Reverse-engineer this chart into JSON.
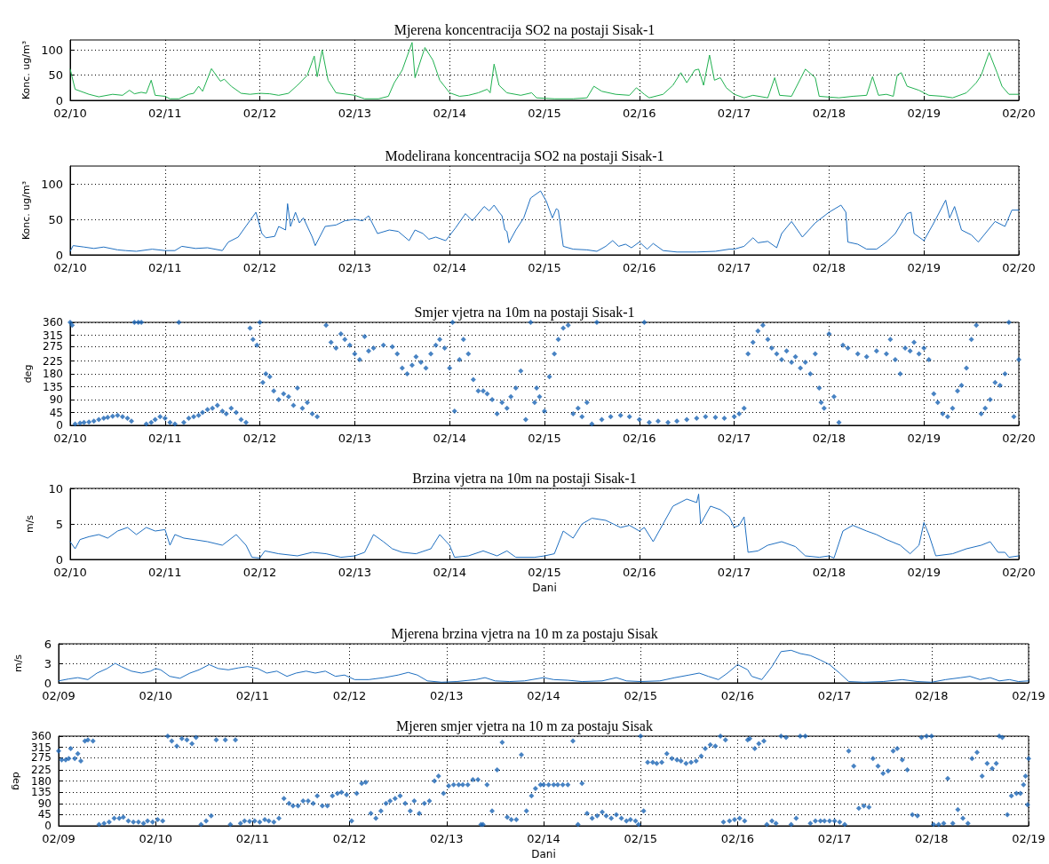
{
  "chart_data": [
    {
      "type": "line",
      "title": "Mjerena koncentracija SO2 na postaji Sisak-1",
      "ylabel": "Konc. ug/m³",
      "color": "#1fb04f",
      "grid": true,
      "xlim": [
        "--02-10",
        "--02-20"
      ],
      "xticks": [
        {
          "value": "--02-10",
          "label": "02/10"
        },
        {
          "value": "--02-11",
          "label": "02/11"
        },
        {
          "value": "--02-12",
          "label": "02/12"
        },
        {
          "value": "--02-13",
          "label": "02/13"
        },
        {
          "value": "--02-14",
          "label": "02/14"
        },
        {
          "value": "--02-15",
          "label": "02/15"
        },
        {
          "value": "--02-16",
          "label": "02/16"
        },
        {
          "value": "--02-17",
          "label": "02/17"
        },
        {
          "value": "--02-18",
          "label": "02/18"
        },
        {
          "value": "--02-19",
          "label": "02/19"
        },
        {
          "value": "--02-20",
          "label": "02/20"
        }
      ],
      "ylim": [
        0,
        120
      ],
      "yticks": [
        0,
        50,
        100
      ],
      "x": [
        "--02-10T00:00",
        "--02-10T01:15",
        "--02-10T04:45",
        "--02-10T07:15",
        "--02-10T10:45",
        "--02-10T13:15",
        "--02-10T15:00",
        "--02-10T16:15",
        "--02-10T18:00",
        "--02-10T19:15",
        "--02-10T20:30",
        "--02-10T21:30",
        "--02-11T00:00",
        "--02-11T01:15",
        "--02-11T03:30",
        "--02-11T06:00",
        "--02-11T07:15",
        "--02-11T08:30",
        "--02-11T09:30",
        "--02-11T11:45",
        "--02-11T14:00",
        "--02-11T15:00",
        "--02-11T16:45",
        "--02-11T19:15",
        "--02-11T21:30",
        "--02-12T00:00",
        "--02-12T02:30",
        "--02-12T04:45",
        "--02-12T07:15",
        "--02-12T09:30",
        "--02-12T12:00",
        "--02-12T13:45",
        "--02-12T14:30",
        "--02-12T15:45",
        "--02-12T17:15",
        "--02-12T19:15",
        "--02-13T00:00",
        "--02-13T02:30",
        "--02-13T06:00",
        "--02-13T08:30",
        "--02-13T10:00",
        "--02-13T12:00",
        "--02-13T14:30",
        "--02-13T15:15",
        "--02-13T17:45",
        "--02-13T19:45",
        "--02-13T21:30",
        "--02-14T00:00",
        "--02-14T02:30",
        "--02-14T04:45",
        "--02-14T07:15",
        "--02-14T09:30",
        "--02-14T10:15",
        "--02-14T11:15",
        "--02-14T12:30",
        "--02-14T14:30",
        "--02-14T18:00",
        "--02-14T20:45",
        "--02-14T22:00",
        "--02-15T02:30",
        "--02-15T07:15",
        "--02-15T10:45",
        "--02-15T12:30",
        "--02-15T14:30",
        "--02-15T18:00",
        "--02-15T21:30",
        "--02-15T23:15",
        "--02-16T01:15",
        "--02-16T02:30",
        "--02-16T06:00",
        "--02-16T08:30",
        "--02-16T10:30",
        "--02-16T12:00",
        "--02-16T14:00",
        "--02-16T15:00",
        "--02-16T16:15",
        "--02-16T17:45",
        "--02-16T19:00",
        "--02-16T20:30",
        "--02-16T22:00",
        "--02-17T00:00",
        "--02-17T02:30",
        "--02-17T04:45",
        "--02-17T08:30",
        "--02-17T10:15",
        "--02-17T11:30",
        "--02-17T14:30",
        "--02-17T18:00",
        "--02-17T20:30",
        "--02-17T21:30",
        "--02-18T02:30",
        "--02-18T06:00",
        "--02-18T09:30",
        "--02-18T11:00",
        "--02-18T12:30",
        "--02-18T14:30",
        "--02-18T16:15",
        "--02-18T17:15",
        "--02-18T18:15",
        "--02-18T19:45",
        "--02-18T22:45",
        "--02-19T01:15",
        "--02-19T04:45",
        "--02-19T07:15",
        "--02-19T10:45",
        "--02-19T13:15",
        "--02-19T14:30",
        "--02-19T16:30",
        "--02-19T18:30",
        "--02-19T19:45",
        "--02-19T21:30",
        "--02-20T00:00"
      ],
      "values": [
        62,
        22,
        12,
        7,
        12,
        10,
        20,
        13,
        16,
        14,
        40,
        10,
        8,
        3,
        3,
        12,
        14,
        28,
        18,
        63,
        38,
        42,
        28,
        14,
        12,
        14,
        13,
        10,
        14,
        30,
        50,
        88,
        47,
        100,
        40,
        15,
        10,
        3,
        3,
        8,
        35,
        60,
        115,
        45,
        105,
        80,
        40,
        15,
        8,
        10,
        15,
        22,
        15,
        72,
        30,
        15,
        10,
        15,
        5,
        3,
        3,
        5,
        28,
        18,
        12,
        10,
        25,
        12,
        5,
        12,
        30,
        55,
        35,
        60,
        62,
        30,
        90,
        40,
        45,
        25,
        12,
        5,
        10,
        5,
        45,
        10,
        8,
        62,
        45,
        8,
        5,
        8,
        10,
        47,
        10,
        12,
        8,
        50,
        55,
        28,
        20,
        10,
        8,
        5,
        15,
        35,
        50,
        95,
        55,
        28,
        12,
        12
      ]
    },
    {
      "type": "line",
      "title": "Modelirana koncentracija SO2 na postaji Sisak-1",
      "ylabel": "Konc. ug/m³",
      "color": "#1f6fc0",
      "grid": true,
      "xlim": [
        "--02-10",
        "--02-20"
      ],
      "xticks": [
        {
          "value": "--02-10",
          "label": "02/10"
        },
        {
          "value": "--02-11",
          "label": "02/11"
        },
        {
          "value": "--02-12",
          "label": "02/12"
        },
        {
          "value": "--02-13",
          "label": "02/13"
        },
        {
          "value": "--02-14",
          "label": "02/14"
        },
        {
          "value": "--02-15",
          "label": "02/15"
        },
        {
          "value": "--02-16",
          "label": "02/16"
        },
        {
          "value": "--02-17",
          "label": "02/17"
        },
        {
          "value": "--02-18",
          "label": "02/18"
        },
        {
          "value": "--02-19",
          "label": "02/19"
        },
        {
          "value": "--02-20",
          "label": "02/20"
        }
      ],
      "ylim": [
        0,
        125
      ],
      "yticks": [
        0,
        50,
        100
      ],
      "x": [
        "--02-10T00:00",
        "--02-10T00:45",
        "--02-10T03:30",
        "--02-10T06:00",
        "--02-10T08:30",
        "--02-10T12:00",
        "--02-10T14:00",
        "--02-10T16:45",
        "--02-10T20:45",
        "--02-11T00:00",
        "--02-11T02:30",
        "--02-11T04:15",
        "--02-11T07:45",
        "--02-11T10:45",
        "--02-11T14:30",
        "--02-11T16:00",
        "--02-11T18:30",
        "--02-11T23:00",
        "--02-12T00:30",
        "--02-12T01:30",
        "--02-12T03:45",
        "--02-12T04:45",
        "--02-12T06:30",
        "--02-12T07:00",
        "--02-12T07:45",
        "--02-12T09:00",
        "--02-12T10:00",
        "--02-12T11:00",
        "--02-12T13:15",
        "--02-12T14:00",
        "--02-12T16:30",
        "--02-12T19:15",
        "--02-12T21:30",
        "--02-13T00:00",
        "--02-13T02:00",
        "--02-13T03:30",
        "--02-13T05:45",
        "--02-13T08:45",
        "--02-13T11:00",
        "--02-13T13:45",
        "--02-13T15:15",
        "--02-13T17:15",
        "--02-13T18:45",
        "--02-13T20:30",
        "--02-13T23:00",
        "--02-14T01:30",
        "--02-14T04:00",
        "--02-14T05:45",
        "--02-14T08:45",
        "--02-14T10:00",
        "--02-14T11:15",
        "--02-14T12:30",
        "--02-14T13:15",
        "--02-14T14:00",
        "--02-14T14:30",
        "--02-14T15:00",
        "--02-14T16:45",
        "--02-14T18:45",
        "--02-14T20:30",
        "--02-14T23:00",
        "--02-15T00:30",
        "--02-15T02:00",
        "--02-15T03:00",
        "--02-15T03:30",
        "--02-15T04:45",
        "--02-15T07:15",
        "--02-15T10:45",
        "--02-15T13:15",
        "--02-15T15:30",
        "--02-15T17:15",
        "--02-15T18:45",
        "--02-15T20:30",
        "--02-15T22:00",
        "--02-16T00:00",
        "--02-16T02:00",
        "--02-16T03:30",
        "--02-16T06:00",
        "--02-16T09:30",
        "--02-16T14:30",
        "--02-16T19:15",
        "--02-16T22:45",
        "--02-17T00:00",
        "--02-17T02:30",
        "--02-17T04:45",
        "--02-17T06:00",
        "--02-17T08:30",
        "--02-17T10:45",
        "--02-17T12:00",
        "--02-17T14:30",
        "--02-17T17:15",
        "--02-17T20:30",
        "--02-18T00:00",
        "--02-18T03:00",
        "--02-18T04:15",
        "--02-18T04:45",
        "--02-18T07:15",
        "--02-18T09:30",
        "--02-18T12:00",
        "--02-18T14:30",
        "--02-18T16:45",
        "--02-18T19:45",
        "--02-18T20:45",
        "--02-18T21:30",
        "--02-19T00:00",
        "--02-19T02:30",
        "--02-19T05:30",
        "--02-19T06:30",
        "--02-19T07:45",
        "--02-19T09:30",
        "--02-19T12:00",
        "--02-19T13:45",
        "--02-19T15:30",
        "--02-19T18:00",
        "--02-19T20:30",
        "--02-19T22:15",
        "--02-20T00:00"
      ],
      "values": [
        5,
        13,
        11,
        9,
        11,
        7,
        6,
        5,
        8,
        6,
        6,
        12,
        9,
        10,
        6,
        18,
        25,
        60,
        30,
        24,
        26,
        40,
        35,
        72,
        40,
        60,
        45,
        52,
        25,
        13,
        40,
        42,
        48,
        50,
        48,
        55,
        30,
        35,
        33,
        20,
        35,
        30,
        22,
        25,
        20,
        38,
        58,
        48,
        68,
        62,
        70,
        60,
        55,
        35,
        33,
        17,
        35,
        52,
        80,
        90,
        75,
        52,
        65,
        63,
        12,
        8,
        7,
        5,
        12,
        20,
        12,
        15,
        10,
        18,
        8,
        16,
        6,
        4,
        4,
        5,
        8,
        8,
        12,
        24,
        17,
        19,
        10,
        30,
        47,
        25,
        45,
        60,
        70,
        60,
        18,
        15,
        8,
        8,
        18,
        30,
        58,
        60,
        30,
        20,
        45,
        77,
        52,
        68,
        35,
        28,
        18,
        30,
        47,
        40,
        63,
        63
      ]
    },
    {
      "type": "scatter",
      "title": "Smjer vjetra na 10m na postaji Sisak-1",
      "ylabel": "deg",
      "color": "#1a64b4",
      "marker": "diamond",
      "grid": true,
      "xlim": [
        "--02-10",
        "--02-20"
      ],
      "xticks": [
        {
          "value": "--02-10",
          "label": "02/10"
        },
        {
          "value": "--02-11",
          "label": "02/11"
        },
        {
          "value": "--02-12",
          "label": "02/12"
        },
        {
          "value": "--02-13",
          "label": "02/13"
        },
        {
          "value": "--02-14",
          "label": "02/14"
        },
        {
          "value": "--02-15",
          "label": "02/15"
        },
        {
          "value": "--02-16",
          "label": "02/16"
        },
        {
          "value": "--02-17",
          "label": "02/17"
        },
        {
          "value": "--02-18",
          "label": "02/18"
        },
        {
          "value": "--02-19",
          "label": "02/19"
        },
        {
          "value": "--02-20",
          "label": "02/20"
        }
      ],
      "ylim": [
        0,
        360
      ],
      "yticks": [
        0,
        45,
        90,
        135,
        180,
        225,
        275,
        315,
        360
      ],
      "x": [
        "--02-10T00:00",
        "--02-10T00:30",
        "--02-10T01:15",
        "--02-10T02:30",
        "--02-10T03:30",
        "--02-10T04:45",
        "--02-10T06:00",
        "--02-10T07:15",
        "--02-10T08:30",
        "--02-10T09:30",
        "--02-10T10:45",
        "--02-10T12:00",
        "--02-10T13:15",
        "--02-10T14:30",
        "--02-10T15:30",
        "--02-10T16:15",
        "--02-10T17:15",
        "--02-10T18:00",
        "--02-10T19:15",
        "--02-10T20:30",
        "--02-10T21:30",
        "--02-10T22:45",
        "--02-11T00:00",
        "--02-11T01:15",
        "--02-11T02:30",
        "--02-11T03:30",
        "--02-11T04:45",
        "--02-11T06:00",
        "--02-11T07:15",
        "--02-11T08:30",
        "--02-11T09:30",
        "--02-11T10:45",
        "--02-11T12:00",
        "--02-11T13:15",
        "--02-11T14:30",
        "--02-11T15:30",
        "--02-11T16:45",
        "--02-11T18:00",
        "--02-11T19:15",
        "--02-11T20:30",
        "--02-11T21:30",
        "--02-11T22:15",
        "--02-11T23:15",
        "--02-12T00:00",
        "--02-12T00:45",
        "--02-12T01:30",
        "--02-12T02:30",
        "--02-12T03:30",
        "--02-12T04:45",
        "--02-12T06:00",
        "--02-12T07:15",
        "--02-12T08:30",
        "--02-12T09:30",
        "--02-12T10:45",
        "--02-12T12:00",
        "--02-12T13:15",
        "--02-12T14:30",
        "--02-12T16:45",
        "--02-12T18:00",
        "--02-12T19:15",
        "--02-12T20:30",
        "--02-12T21:30",
        "--02-12T22:45",
        "--02-13T00:00",
        "--02-13T01:15",
        "--02-13T02:30",
        "--02-13T03:30",
        "--02-13T04:45",
        "--02-13T07:15",
        "--02-13T09:30",
        "--02-13T10:45",
        "--02-13T12:00",
        "--02-13T13:15",
        "--02-13T14:30",
        "--02-13T15:30",
        "--02-13T16:45",
        "--02-13T18:00",
        "--02-13T19:15",
        "--02-13T20:30",
        "--02-13T21:30",
        "--02-13T22:45",
        "--02-14T00:00",
        "--02-14T00:45",
        "--02-14T01:15",
        "--02-14T02:30",
        "--02-14T03:30",
        "--02-14T04:45",
        "--02-14T06:00",
        "--02-14T07:15",
        "--02-14T08:30",
        "--02-14T09:30",
        "--02-14T10:45",
        "--02-14T12:00",
        "--02-14T13:15",
        "--02-14T14:30",
        "--02-14T15:30",
        "--02-14T16:45",
        "--02-14T18:00",
        "--02-14T19:15",
        "--02-14T20:30",
        "--02-14T21:30",
        "--02-14T22:00",
        "--02-14T22:45",
        "--02-15T00:00",
        "--02-15T01:15",
        "--02-15T02:30",
        "--02-15T03:30",
        "--02-15T04:45",
        "--02-15T06:00",
        "--02-15T07:15",
        "--02-15T08:30",
        "--02-15T09:30",
        "--02-15T10:45",
        "--02-15T12:00",
        "--02-15T13:15",
        "--02-15T14:30",
        "--02-15T16:45",
        "--02-15T19:15",
        "--02-15T21:30",
        "--02-16T00:00",
        "--02-16T01:15",
        "--02-16T02:30",
        "--02-16T04:45",
        "--02-16T07:15",
        "--02-16T09:30",
        "--02-16T12:00",
        "--02-16T14:30",
        "--02-16T16:45",
        "--02-16T19:15",
        "--02-16T21:30",
        "--02-17T00:00",
        "--02-17T01:15",
        "--02-17T02:30",
        "--02-17T03:30",
        "--02-17T04:45",
        "--02-17T06:00",
        "--02-17T07:15",
        "--02-17T08:30",
        "--02-17T09:30",
        "--02-17T10:45",
        "--02-17T12:00",
        "--02-17T13:15",
        "--02-17T14:30",
        "--02-17T15:30",
        "--02-17T16:45",
        "--02-17T18:00",
        "--02-17T19:15",
        "--02-17T20:30",
        "--02-17T21:30",
        "--02-17T22:00",
        "--02-17T22:45",
        "--02-18T00:00",
        "--02-18T01:15",
        "--02-18T02:30",
        "--02-18T03:30",
        "--02-18T04:45",
        "--02-18T07:15",
        "--02-18T09:30",
        "--02-18T12:00",
        "--02-18T14:30",
        "--02-18T15:30",
        "--02-18T16:45",
        "--02-18T18:00",
        "--02-18T19:15",
        "--02-18T20:30",
        "--02-18T21:30",
        "--02-18T22:45",
        "--02-19T00:00",
        "--02-19T01:15",
        "--02-19T02:30",
        "--02-19T03:30",
        "--02-19T04:45",
        "--02-19T06:00",
        "--02-19T07:15",
        "--02-19T08:30",
        "--02-19T09:30",
        "--02-19T10:45",
        "--02-19T12:00",
        "--02-19T13:15",
        "--02-19T14:30",
        "--02-19T15:30",
        "--02-19T16:45",
        "--02-19T18:00",
        "--02-19T19:15",
        "--02-19T20:30",
        "--02-19T21:30",
        "--02-19T22:45",
        "--02-20T00:00"
      ],
      "values": [
        360,
        350,
        5,
        8,
        10,
        12,
        15,
        20,
        25,
        28,
        32,
        35,
        30,
        25,
        15,
        360,
        360,
        360,
        5,
        10,
        20,
        30,
        25,
        10,
        5,
        360,
        10,
        25,
        30,
        35,
        45,
        55,
        60,
        70,
        50,
        40,
        60,
        45,
        20,
        10,
        340,
        300,
        280,
        360,
        150,
        180,
        170,
        120,
        90,
        110,
        100,
        70,
        130,
        60,
        80,
        40,
        30,
        350,
        290,
        270,
        320,
        300,
        280,
        250,
        230,
        310,
        260,
        270,
        280,
        275,
        250,
        200,
        180,
        210,
        240,
        220,
        200,
        250,
        280,
        300,
        270,
        200,
        360,
        50,
        230,
        300,
        250,
        160,
        120,
        120,
        110,
        90,
        40,
        80,
        60,
        100,
        130,
        190,
        20,
        360,
        80,
        130,
        100,
        50,
        170,
        250,
        300,
        340,
        350,
        40,
        60,
        30,
        80,
        5,
        360,
        20,
        30,
        35,
        30,
        20,
        360,
        10,
        15,
        10,
        15,
        20,
        25,
        30,
        28,
        25,
        30,
        40,
        60,
        250,
        290,
        330,
        350,
        300,
        270,
        250,
        230,
        260,
        220,
        240,
        200,
        220,
        180,
        250,
        130,
        80,
        60,
        320,
        100,
        10,
        280,
        270,
        250,
        240,
        260,
        250,
        300,
        230,
        180,
        270,
        260,
        290,
        250,
        270,
        230,
        110,
        80,
        40,
        30,
        60,
        120,
        140,
        200,
        300,
        350,
        40,
        60,
        90,
        150,
        140,
        180,
        360,
        30,
        230
      ]
    },
    {
      "type": "line",
      "title": "Brzina vjetra na 10m na postaji Sisak-1",
      "ylabel": "m/s",
      "xlabel": "Dani",
      "color": "#1f6fc0",
      "grid": true,
      "xlim": [
        "--02-10",
        "--02-20"
      ],
      "xticks": [
        {
          "value": "--02-10",
          "label": "02/10"
        },
        {
          "value": "--02-11",
          "label": "02/11"
        },
        {
          "value": "--02-12",
          "label": "02/12"
        },
        {
          "value": "--02-13",
          "label": "02/13"
        },
        {
          "value": "--02-14",
          "label": "02/14"
        },
        {
          "value": "--02-15",
          "label": "02/15"
        },
        {
          "value": "--02-16",
          "label": "02/16"
        },
        {
          "value": "--02-17",
          "label": "02/17"
        },
        {
          "value": "--02-18",
          "label": "02/18"
        },
        {
          "value": "--02-19",
          "label": "02/19"
        },
        {
          "value": "--02-20",
          "label": "02/20"
        }
      ],
      "ylim": [
        0,
        10
      ],
      "yticks": [
        0,
        5,
        10
      ],
      "x": [
        "--02-10T00:00",
        "--02-10T01:15",
        "--02-10T02:30",
        "--02-10T04:45",
        "--02-10T07:15",
        "--02-10T09:30",
        "--02-10T12:00",
        "--02-10T14:30",
        "--02-10T16:45",
        "--02-10T19:15",
        "--02-10T21:30",
        "--02-11T00:00",
        "--02-11T01:15",
        "--02-11T02:30",
        "--02-11T04:45",
        "--02-11T07:15",
        "--02-11T10:45",
        "--02-11T14:30",
        "--02-11T18:00",
        "--02-11T20:30",
        "--02-11T22:00",
        "--02-12T00:00",
        "--02-12T01:15",
        "--02-12T04:45",
        "--02-12T09:30",
        "--02-12T13:15",
        "--02-12T16:45",
        "--02-12T20:30",
        "--02-13T00:00",
        "--02-13T02:30",
        "--02-13T04:45",
        "--02-13T07:15",
        "--02-13T09:30",
        "--02-13T12:00",
        "--02-13T15:30",
        "--02-13T19:15",
        "--02-13T21:30",
        "--02-14T00:00",
        "--02-14T01:15",
        "--02-14T04:45",
        "--02-14T08:30",
        "--02-14T12:00",
        "--02-14T14:30",
        "--02-14T16:45",
        "--02-14T21:30",
        "--02-15T00:00",
        "--02-15T02:30",
        "--02-15T04:45",
        "--02-15T07:15",
        "--02-15T09:30",
        "--02-15T12:00",
        "--02-15T15:30",
        "--02-15T19:15",
        "--02-15T21:30",
        "--02-16T00:00",
        "--02-16T01:15",
        "--02-16T03:30",
        "--02-16T06:00",
        "--02-16T08:30",
        "--02-16T12:00",
        "--02-16T14:30",
        "--02-16T15:00",
        "--02-16T15:30",
        "--02-16T18:00",
        "--02-16T20:30",
        "--02-16T22:45",
        "--02-17T00:00",
        "--02-17T01:15",
        "--02-17T02:30",
        "--02-17T03:30",
        "--02-17T06:00",
        "--02-17T08:30",
        "--02-17T12:00",
        "--02-17T15:30",
        "--02-17T18:00",
        "--02-17T21:30",
        "--02-18T00:00",
        "--02-18T01:15",
        "--02-18T03:30",
        "--02-18T06:00",
        "--02-18T09:30",
        "--02-18T12:00",
        "--02-18T14:30",
        "--02-18T18:00",
        "--02-18T20:30",
        "--02-18T22:45",
        "--02-19T00:00",
        "--02-19T01:15",
        "--02-19T03:00",
        "--02-19T07:15",
        "--02-19T10:45",
        "--02-19T14:30",
        "--02-19T16:45",
        "--02-19T18:45",
        "--02-19T20:30",
        "--02-19T21:30",
        "--02-20T00:00"
      ],
      "values": [
        2.5,
        1.5,
        2.8,
        3.2,
        3.5,
        3,
        4,
        4.5,
        3.5,
        4.5,
        4,
        4.2,
        2,
        3.5,
        3,
        2.8,
        2.5,
        2,
        3.5,
        2,
        0.3,
        0.2,
        1.2,
        0.8,
        0.5,
        1,
        0.8,
        0.3,
        0.5,
        1,
        3.5,
        2.5,
        1.5,
        1,
        0.8,
        1.5,
        3.5,
        2,
        0.3,
        0.5,
        1.2,
        0.5,
        1.2,
        0.3,
        0.3,
        0.5,
        0.8,
        4,
        3,
        5,
        5.8,
        5.5,
        4.5,
        4.8,
        4,
        4.5,
        2.5,
        5,
        7.5,
        8.5,
        8,
        9.2,
        5,
        7.5,
        7,
        6,
        4.5,
        4.8,
        6,
        1,
        1.2,
        2,
        2.5,
        1.8,
        0.5,
        0.3,
        0.5,
        0.2,
        4,
        4.8,
        4,
        3.5,
        2.8,
        2,
        0.8,
        2,
        5.2,
        3.5,
        0.5,
        0.8,
        1.5,
        2,
        2.5,
        1,
        1,
        0.3,
        0.5
      ]
    },
    {
      "type": "line",
      "title": "Mjerena brzina vjetra na 10 m za postaju Sisak",
      "ylabel": "m/s",
      "color": "#1f6fc0",
      "grid": true,
      "xlim": [
        "--02-09",
        "--02-19"
      ],
      "xticks": [
        {
          "value": "--02-09",
          "label": "02/09"
        },
        {
          "value": "--02-10",
          "label": "02/10"
        },
        {
          "value": "--02-11",
          "label": "02/11"
        },
        {
          "value": "--02-12",
          "label": "02/12"
        },
        {
          "value": "--02-13",
          "label": "02/13"
        },
        {
          "value": "--02-14",
          "label": "02/14"
        },
        {
          "value": "--02-15",
          "label": "02/15"
        },
        {
          "value": "--02-16",
          "label": "02/16"
        },
        {
          "value": "--02-17",
          "label": "02/17"
        },
        {
          "value": "--02-18",
          "label": "02/18"
        },
        {
          "value": "--02-19",
          "label": "02/19"
        }
      ],
      "ylim": [
        0,
        6
      ],
      "yticks": [
        0,
        3,
        6
      ],
      "x": [
        "--02-09T00:00",
        "--02-09T02:30",
        "--02-09T04:45",
        "--02-09T07:15",
        "--02-09T09:30",
        "--02-09T12:00",
        "--02-09T14:00",
        "--02-09T15:30",
        "--02-09T18:00",
        "--02-09T20:30",
        "--02-09T22:45",
        "--02-10T00:00",
        "--02-10T01:15",
        "--02-10T03:30",
        "--02-10T06:00",
        "--02-10T08:30",
        "--02-10T10:45",
        "--02-10T13:15",
        "--02-10T15:30",
        "--02-10T18:00",
        "--02-10T20:30",
        "--02-10T22:45",
        "--02-11T01:15",
        "--02-11T03:30",
        "--02-11T06:00",
        "--02-11T08:30",
        "--02-11T10:45",
        "--02-11T13:15",
        "--02-11T15:30",
        "--02-11T18:00",
        "--02-11T20:30",
        "--02-11T22:45",
        "--02-12T01:15",
        "--02-12T04:45",
        "--02-12T08:30",
        "--02-12T12:00",
        "--02-12T14:30",
        "--02-12T16:45",
        "--02-12T19:15",
        "--02-12T22:45",
        "--02-13T02:30",
        "--02-13T07:15",
        "--02-13T09:30",
        "--02-13T12:00",
        "--02-13T15:30",
        "--02-13T19:15",
        "--02-14T00:00",
        "--02-14T02:30",
        "--02-14T06:00",
        "--02-14T09:30",
        "--02-14T14:30",
        "--02-14T18:00",
        "--02-14T20:30",
        "--02-15T00:00",
        "--02-15T04:45",
        "--02-15T08:30",
        "--02-15T12:00",
        "--02-15T14:30",
        "--02-15T16:45",
        "--02-15T19:15",
        "--02-15T21:30",
        "--02-16T00:00",
        "--02-16T02:30",
        "--02-16T03:30",
        "--02-16T06:00",
        "--02-16T07:15",
        "--02-16T08:30",
        "--02-16T10:45",
        "--02-16T13:15",
        "--02-16T15:30",
        "--02-16T18:00",
        "--02-16T20:30",
        "--02-16T22:45",
        "--02-17T01:15",
        "--02-17T03:30",
        "--02-17T07:15",
        "--02-17T12:00",
        "--02-17T16:45",
        "--02-17T20:30",
        "--02-18T00:00",
        "--02-18T03:30",
        "--02-18T07:15",
        "--02-18T09:30",
        "--02-18T12:00",
        "--02-18T14:30",
        "--02-18T16:45",
        "--02-18T19:15",
        "--02-18T21:30",
        "--02-19T00:00"
      ],
      "values": [
        0.3,
        0.6,
        0.8,
        0.5,
        1.5,
        2.2,
        3,
        2.5,
        1.8,
        1.5,
        1.8,
        2.2,
        2,
        1,
        0.7,
        1.5,
        2,
        2.8,
        2.2,
        2,
        2.3,
        2.5,
        2.2,
        1.5,
        1.8,
        1,
        1.5,
        1.8,
        1.5,
        1.8,
        1,
        1.2,
        0.5,
        0.5,
        0.8,
        1.2,
        1.6,
        1.2,
        0.3,
        0.1,
        0.2,
        0.5,
        0.8,
        0.3,
        0.2,
        0.3,
        0.8,
        0.5,
        0.4,
        0.2,
        0.3,
        0.8,
        0.3,
        0.2,
        0.3,
        0.8,
        1.2,
        1.5,
        1,
        0.5,
        1.5,
        2.8,
        2,
        1,
        0.5,
        1.5,
        2.5,
        4.8,
        5,
        4.5,
        4.2,
        3.5,
        2.8,
        1.5,
        0.2,
        0.1,
        0.2,
        0.5,
        0.2,
        0.1,
        0.5,
        0.8,
        1,
        0.5,
        0.8,
        0.3,
        0.5,
        0.2,
        0.3
      ]
    },
    {
      "type": "scatter",
      "title": "Mjeren smjer vjetra na 10 m za postaju Sisak",
      "ylabel": "deg",
      "xlabel": "Dani",
      "color": "#1a64b4",
      "marker": "diamond",
      "grid": true,
      "xlim": [
        "--02-09",
        "--02-19"
      ],
      "xticks": [
        {
          "value": "--02-09",
          "label": "02/09"
        },
        {
          "value": "--02-10",
          "label": "02/10"
        },
        {
          "value": "--02-11",
          "label": "02/11"
        },
        {
          "value": "--02-12",
          "label": "02/12"
        },
        {
          "value": "--02-13",
          "label": "02/13"
        },
        {
          "value": "--02-14",
          "label": "02/14"
        },
        {
          "value": "--02-15",
          "label": "02/15"
        },
        {
          "value": "--02-16",
          "label": "02/16"
        },
        {
          "value": "--02-17",
          "label": "02/17"
        },
        {
          "value": "--02-18",
          "label": "02/18"
        },
        {
          "value": "--02-19",
          "label": "02/19"
        }
      ],
      "ylim": [
        0,
        360
      ],
      "yticks": [
        0,
        45,
        90,
        135,
        180,
        225,
        275,
        315,
        360
      ],
      "x": [
        "--02-09T00:00",
        "--02-09T00:45",
        "--02-09T01:45",
        "--02-09T02:30",
        "--02-09T03:00",
        "--02-09T04:00",
        "--02-09T04:45",
        "--02-09T05:30",
        "--02-09T06:30",
        "--02-09T07:15",
        "--02-09T08:30",
        "--02-09T10:00",
        "--02-09T11:15",
        "--02-09T12:30",
        "--02-09T13:45",
        "--02-09T15:00",
        "--02-09T16:00",
        "--02-09T17:15",
        "--02-09T18:30",
        "--02-09T19:45",
        "--02-09T21:00",
        "--02-09T22:00",
        "--02-09T23:15",
        "--02-10T00:30",
        "--02-10T01:45",
        "--02-10T03:00",
        "--02-10T04:00",
        "--02-10T05:15",
        "--02-10T06:30",
        "--02-10T07:45",
        "--02-10T09:00",
        "--02-10T10:00",
        "--02-10T11:15",
        "--02-10T12:30",
        "--02-10T13:45",
        "--02-10T15:00",
        "--02-10T17:15",
        "--02-10T18:30",
        "--02-10T19:45",
        "--02-10T21:00",
        "--02-10T22:00",
        "--02-10T23:15",
        "--02-11T00:30",
        "--02-11T01:45",
        "--02-11T03:00",
        "--02-11T04:00",
        "--02-11T05:15",
        "--02-11T06:30",
        "--02-11T07:45",
        "--02-11T09:00",
        "--02-11T10:00",
        "--02-11T11:15",
        "--02-11T12:30",
        "--02-11T13:45",
        "--02-11T15:00",
        "--02-11T16:00",
        "--02-11T17:15",
        "--02-11T18:30",
        "--02-11T19:45",
        "--02-11T21:00",
        "--02-11T22:00",
        "--02-11T23:15",
        "--02-12T00:30",
        "--02-12T01:45",
        "--02-12T03:00",
        "--02-12T04:00",
        "--02-12T05:15",
        "--02-12T06:30",
        "--02-12T07:45",
        "--02-12T09:00",
        "--02-12T10:00",
        "--02-12T11:15",
        "--02-12T12:30",
        "--02-12T13:45",
        "--02-12T15:00",
        "--02-12T16:00",
        "--02-12T17:15",
        "--02-12T18:30",
        "--02-12T19:45",
        "--02-12T21:00",
        "--02-12T22:00",
        "--02-12T23:15",
        "--02-13T00:30",
        "--02-13T01:45",
        "--02-13T03:00",
        "--02-13T04:00",
        "--02-13T05:15",
        "--02-13T06:30",
        "--02-13T07:45",
        "--02-13T08:30",
        "--02-13T09:00",
        "--02-13T10:00",
        "--02-13T11:15",
        "--02-13T12:30",
        "--02-13T13:45",
        "--02-13T15:00",
        "--02-13T16:00",
        "--02-13T17:15",
        "--02-13T18:30",
        "--02-13T19:45",
        "--02-13T21:00",
        "--02-13T22:00",
        "--02-13T23:15",
        "--02-14T00:00",
        "--02-14T01:15",
        "--02-14T02:30",
        "--02-14T03:30",
        "--02-14T04:45",
        "--02-14T06:00",
        "--02-14T07:15",
        "--02-14T08:30",
        "--02-14T09:30",
        "--02-14T10:45",
        "--02-14T12:00",
        "--02-14T13:15",
        "--02-14T14:30",
        "--02-14T15:30",
        "--02-14T16:45",
        "--02-14T18:00",
        "--02-14T19:15",
        "--02-14T20:30",
        "--02-14T21:30",
        "--02-14T22:45",
        "--02-14T23:30",
        "--02-15T00:00",
        "--02-15T00:45",
        "--02-15T01:45",
        "--02-15T03:00",
        "--02-15T04:00",
        "--02-15T05:15",
        "--02-15T06:30",
        "--02-15T07:45",
        "--02-15T09:00",
        "--02-15T10:00",
        "--02-15T11:15",
        "--02-15T12:30",
        "--02-15T13:45",
        "--02-15T15:00",
        "--02-15T16:00",
        "--02-15T17:15",
        "--02-15T18:30",
        "--02-15T19:45",
        "--02-15T20:30",
        "--02-15T21:00",
        "--02-15T22:00",
        "--02-15T23:15",
        "--02-16T00:30",
        "--02-16T01:45",
        "--02-16T02:30",
        "--02-16T03:00",
        "--02-16T04:15",
        "--02-16T05:15",
        "--02-16T06:30",
        "--02-16T07:15",
        "--02-16T08:30",
        "--02-16T09:30",
        "--02-16T10:45",
        "--02-16T12:00",
        "--02-16T13:15",
        "--02-16T14:30",
        "--02-16T15:30",
        "--02-16T16:45",
        "--02-16T18:00",
        "--02-16T19:15",
        "--02-16T20:30",
        "--02-16T21:30",
        "--02-16T22:45",
        "--02-17T00:00",
        "--02-17T01:15",
        "--02-17T02:30",
        "--02-17T03:30",
        "--02-17T04:45",
        "--02-17T06:00",
        "--02-17T07:15",
        "--02-17T08:30",
        "--02-17T09:30",
        "--02-17T10:45",
        "--02-17T12:00",
        "--02-17T13:15",
        "--02-17T14:30",
        "--02-17T15:30",
        "--02-17T16:45",
        "--02-17T18:00",
        "--02-17T19:15",
        "--02-17T20:30",
        "--02-17T21:30",
        "--02-17T22:45",
        "--02-18T00:00",
        "--02-18T00:30",
        "--02-18T01:45",
        "--02-18T03:00",
        "--02-18T04:00",
        "--02-18T05:15",
        "--02-18T06:30",
        "--02-18T07:45",
        "--02-18T09:00",
        "--02-18T10:00",
        "--02-18T11:15",
        "--02-18T12:30",
        "--02-18T13:45",
        "--02-18T15:00",
        "--02-18T16:00",
        "--02-18T16:45",
        "--02-18T17:30",
        "--02-18T18:45",
        "--02-18T19:45",
        "--02-18T21:00",
        "--02-18T22:00",
        "--02-18T22:45",
        "--02-18T23:15",
        "--02-18T23:45",
        "--02-19T00:00"
      ],
      "values": [
        300,
        265,
        265,
        270,
        310,
        270,
        290,
        260,
        340,
        345,
        340,
        5,
        10,
        15,
        30,
        30,
        35,
        20,
        15,
        15,
        10,
        20,
        15,
        25,
        20,
        360,
        340,
        320,
        350,
        345,
        330,
        355,
        5,
        20,
        40,
        345,
        345,
        5,
        345,
        10,
        20,
        18,
        20,
        15,
        25,
        20,
        15,
        30,
        110,
        90,
        80,
        80,
        100,
        100,
        90,
        120,
        80,
        80,
        120,
        130,
        135,
        125,
        20,
        130,
        170,
        175,
        50,
        30,
        60,
        90,
        100,
        110,
        120,
        90,
        60,
        100,
        50,
        90,
        100,
        180,
        200,
        130,
        160,
        165,
        165,
        165,
        165,
        185,
        185,
        5,
        5,
        165,
        60,
        225,
        335,
        35,
        25,
        25,
        285,
        60,
        120,
        150,
        165,
        165,
        165,
        165,
        165,
        165,
        165,
        340,
        5,
        170,
        50,
        30,
        40,
        55,
        40,
        30,
        45,
        30,
        20,
        25,
        20,
        5,
        360,
        60,
        255,
        255,
        250,
        255,
        290,
        270,
        265,
        260,
        250,
        255,
        260,
        280,
        310,
        325,
        320,
        360,
        15,
        345,
        20,
        25,
        30,
        20,
        345,
        350,
        310,
        330,
        340,
        5,
        20,
        10,
        360,
        355,
        5,
        30,
        360,
        360,
        10,
        20,
        20,
        20,
        20,
        20,
        15,
        5,
        300,
        240,
        70,
        80,
        75,
        270,
        240,
        210,
        220,
        300,
        310,
        265,
        225,
        45,
        40,
        355,
        360,
        360,
        5,
        5,
        10,
        190,
        10,
        65,
        30,
        10,
        270,
        295,
        200,
        250,
        230,
        250,
        360,
        355,
        45,
        120,
        130,
        130,
        165,
        200,
        85,
        270
      ]
    }
  ]
}
